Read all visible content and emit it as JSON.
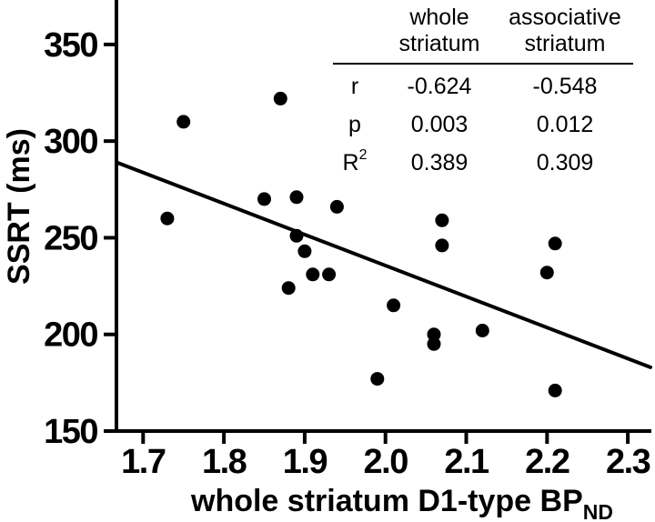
{
  "figure": {
    "background": "#ffffff",
    "ink": "#000000"
  },
  "chart_data": {
    "type": "scatter",
    "title": "",
    "x_label_base": "whole striatum D1-type BP",
    "x_label_sub": "ND",
    "y_label": "SSRT (ms)",
    "x_ticks": [
      1.7,
      1.8,
      1.9,
      2.0,
      2.1,
      2.2,
      2.3
    ],
    "x_tick_labels": [
      "1.7",
      "1.8",
      "1.9",
      "2.0",
      "2.1",
      "2.2",
      "2.3"
    ],
    "y_ticks": [
      350,
      300,
      250,
      200,
      150
    ],
    "y_tick_labels": [
      "350",
      "300",
      "250",
      "200",
      "150"
    ],
    "xlim": [
      1.667,
      2.328
    ],
    "ylim": [
      150,
      373
    ],
    "grid": false,
    "legend": "none",
    "marker_color": "#000000",
    "points": [
      [
        1.73,
        260
      ],
      [
        1.75,
        310
      ],
      [
        1.85,
        270
      ],
      [
        1.87,
        322
      ],
      [
        1.88,
        224
      ],
      [
        1.89,
        251
      ],
      [
        1.89,
        271
      ],
      [
        1.9,
        243
      ],
      [
        1.91,
        231
      ],
      [
        1.93,
        231
      ],
      [
        1.94,
        266
      ],
      [
        1.99,
        177
      ],
      [
        2.01,
        215
      ],
      [
        2.06,
        195
      ],
      [
        2.06,
        200
      ],
      [
        2.07,
        246
      ],
      [
        2.07,
        259
      ],
      [
        2.12,
        202
      ],
      [
        2.2,
        232
      ],
      [
        2.21,
        247
      ],
      [
        2.21,
        171
      ]
    ],
    "trend_line": {
      "x1": 1.667,
      "y1": 289,
      "x2": 2.328,
      "y2": 183
    },
    "stats_table": {
      "columns": [
        "whole striatum",
        "associative striatum"
      ],
      "rows": [
        {
          "label_base": "r",
          "label_sup": "",
          "whole": "-0.624",
          "associative": "-0.548"
        },
        {
          "label_base": "p",
          "label_sup": "",
          "whole": "0.003",
          "associative": "0.012"
        },
        {
          "label_base": "R",
          "label_sup": "2",
          "whole": "0.389",
          "associative": "0.309"
        }
      ]
    }
  }
}
